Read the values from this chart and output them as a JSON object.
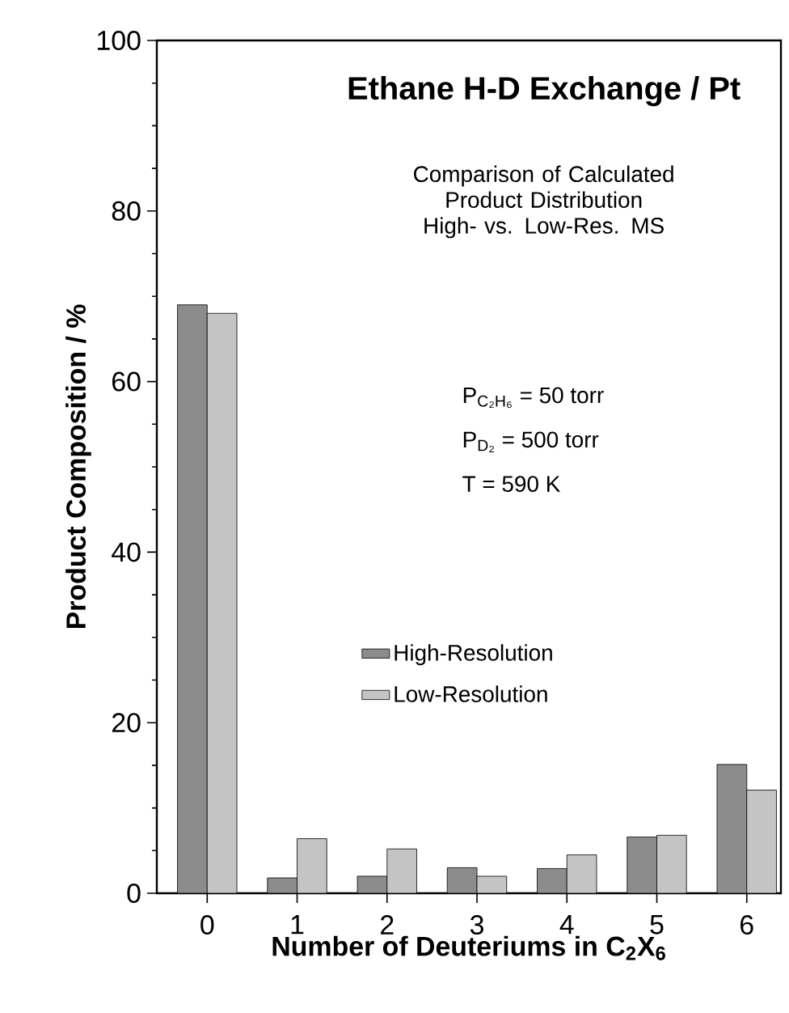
{
  "chart_data": {
    "type": "bar",
    "title": "Ethane H-D Exchange / Pt",
    "subtitle": "Comparison of Calculated Product Distribution High- vs. Low-Res. MS",
    "xlabel": "Number of Deuteriums in C$_{2}$X$_{6}$",
    "ylabel": "Product Composition / %",
    "categories": [
      "0",
      "1",
      "2",
      "3",
      "4",
      "5",
      "6"
    ],
    "series": [
      {
        "name": "High-Resolution",
        "color": "#8c8c8c",
        "values": [
          69,
          1.8,
          2.0,
          3.0,
          2.9,
          6.6,
          15.1
        ]
      },
      {
        "name": "Low-Resolution",
        "color": "#c4c4c4",
        "values": [
          68,
          6.4,
          5.2,
          2.0,
          4.5,
          6.8,
          12.1
        ]
      }
    ],
    "annotations": [
      "P$_{C₂H₆}$ = 50 torr",
      "P$_{D₂}$ = 500 torr",
      "T = 590 K"
    ],
    "ylim": [
      0,
      100
    ],
    "yticks": [
      0,
      20,
      40,
      60,
      80,
      100
    ],
    "legend": "center",
    "grid": false
  }
}
